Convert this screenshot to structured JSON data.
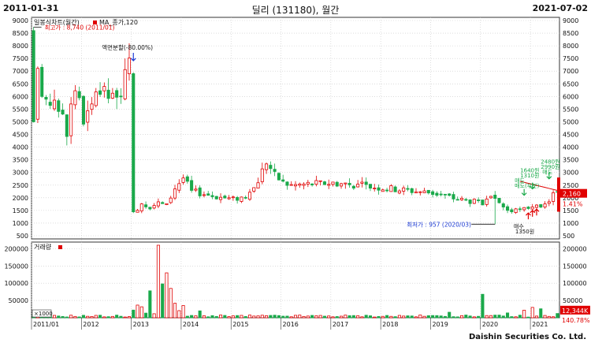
{
  "header": {
    "start_date": "2011-01-31",
    "title": "딜리 (131180), 월간",
    "end_date": "2021-07-02"
  },
  "legend": {
    "chart_type": "일봉식차트(월간)",
    "ma_label": "MA_종가,120",
    "volume_label": "거래량",
    "volume_unit": "×1000"
  },
  "footer": "Daishin Securities Co. Ltd.",
  "colors": {
    "up": "#e00000",
    "down": "#1aa94a",
    "ma": "#e00000",
    "annot_red": "#e00000",
    "annot_blue": "#1e3cd4",
    "annot_green": "#1aa94a"
  },
  "chart_data": [
    {
      "type": "candlestick",
      "title": "딜리 (131180), 월간",
      "x": [
        "2011/01",
        "2012",
        "2013",
        "2014",
        "2015",
        "2016",
        "2017",
        "2018",
        "2019",
        "2020",
        "2021"
      ],
      "ylim": [
        500,
        9000
      ],
      "y_ticks": [
        500,
        1000,
        1500,
        2000,
        2500,
        3000,
        3500,
        4000,
        4500,
        5000,
        5500,
        6000,
        6500,
        7000,
        7500,
        8000,
        8500,
        9000
      ],
      "last_price": "2,160",
      "last_change": "1.41%",
      "annotations": {
        "high": "최고가 : 8,740 (2011/01)",
        "split": "액면분할(-80.00%)",
        "low": "최저가 : 957 (2020/03)",
        "p1640": "1640원",
        "p1310": "1310원",
        "p2480": "2480원",
        "p2990": "2990원",
        "sell1": "매도",
        "sell2": "매도(부분)",
        "sell3": "매도",
        "buy1": "매수",
        "buy2": "1350원"
      },
      "series": []
    },
    {
      "type": "bar",
      "title": "거래량",
      "ylim": [
        0,
        210000
      ],
      "y_ticks": [
        "200000",
        "150000",
        "100000",
        "50000"
      ],
      "last_volume": "12,344K",
      "last_volume_change": "140.78%",
      "series": []
    }
  ]
}
